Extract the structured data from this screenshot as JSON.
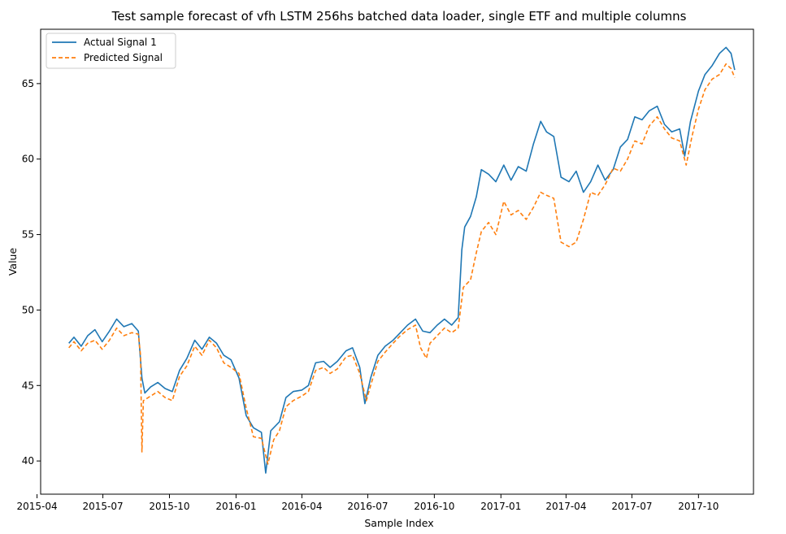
{
  "chart_data": {
    "type": "line",
    "title": "Test sample forecast of vfh LSTM 256hs batched data loader, single ETF and multiple columns",
    "xlabel": "Sample Index",
    "ylabel": "Value",
    "xlim": [
      "2015-04-06",
      "2017-12-16"
    ],
    "ylim": [
      37.8,
      68.6
    ],
    "x_ticks": [
      "2015-04",
      "2015-07",
      "2015-10",
      "2016-01",
      "2016-04",
      "2016-07",
      "2016-10",
      "2017-01",
      "2017-04",
      "2017-07",
      "2017-10"
    ],
    "y_ticks": [
      40,
      45,
      50,
      55,
      60,
      65
    ],
    "grid": false,
    "legend": "top-left",
    "series": [
      {
        "name": "Actual Signal 1",
        "color": "#1f77b4",
        "style": "solid",
        "points": [
          [
            "2015-05-15",
            47.8
          ],
          [
            "2015-05-22",
            48.2
          ],
          [
            "2015-06-01",
            47.6
          ],
          [
            "2015-06-10",
            48.3
          ],
          [
            "2015-06-20",
            48.7
          ],
          [
            "2015-06-30",
            47.9
          ],
          [
            "2015-07-10",
            48.6
          ],
          [
            "2015-07-20",
            49.4
          ],
          [
            "2015-07-30",
            48.9
          ],
          [
            "2015-08-10",
            49.1
          ],
          [
            "2015-08-19",
            48.6
          ],
          [
            "2015-08-24",
            45.5
          ],
          [
            "2015-08-28",
            44.5
          ],
          [
            "2015-09-05",
            44.9
          ],
          [
            "2015-09-15",
            45.2
          ],
          [
            "2015-09-25",
            44.8
          ],
          [
            "2015-10-05",
            44.6
          ],
          [
            "2015-10-15",
            46.0
          ],
          [
            "2015-10-25",
            46.8
          ],
          [
            "2015-11-05",
            48.0
          ],
          [
            "2015-11-15",
            47.4
          ],
          [
            "2015-11-25",
            48.2
          ],
          [
            "2015-12-05",
            47.8
          ],
          [
            "2015-12-15",
            47.0
          ],
          [
            "2015-12-25",
            46.7
          ],
          [
            "2016-01-05",
            45.5
          ],
          [
            "2016-01-15",
            43.0
          ],
          [
            "2016-01-25",
            42.2
          ],
          [
            "2016-02-05",
            41.9
          ],
          [
            "2016-02-11",
            39.2
          ],
          [
            "2016-02-18",
            42.0
          ],
          [
            "2016-03-01",
            42.6
          ],
          [
            "2016-03-10",
            44.2
          ],
          [
            "2016-03-20",
            44.6
          ],
          [
            "2016-04-01",
            44.7
          ],
          [
            "2016-04-10",
            45.0
          ],
          [
            "2016-04-20",
            46.5
          ],
          [
            "2016-05-01",
            46.6
          ],
          [
            "2016-05-10",
            46.2
          ],
          [
            "2016-05-20",
            46.6
          ],
          [
            "2016-06-01",
            47.3
          ],
          [
            "2016-06-10",
            47.5
          ],
          [
            "2016-06-20",
            46.2
          ],
          [
            "2016-06-27",
            43.8
          ],
          [
            "2016-07-05",
            45.5
          ],
          [
            "2016-07-15",
            47.0
          ],
          [
            "2016-07-25",
            47.6
          ],
          [
            "2016-08-05",
            48.0
          ],
          [
            "2016-08-15",
            48.5
          ],
          [
            "2016-08-25",
            49.0
          ],
          [
            "2016-09-05",
            49.4
          ],
          [
            "2016-09-15",
            48.6
          ],
          [
            "2016-09-25",
            48.5
          ],
          [
            "2016-10-05",
            49.0
          ],
          [
            "2016-10-15",
            49.4
          ],
          [
            "2016-10-25",
            49.0
          ],
          [
            "2016-11-03",
            49.5
          ],
          [
            "2016-11-08",
            54.0
          ],
          [
            "2016-11-12",
            55.5
          ],
          [
            "2016-11-20",
            56.2
          ],
          [
            "2016-11-28",
            57.5
          ],
          [
            "2016-12-05",
            59.3
          ],
          [
            "2016-12-15",
            59.0
          ],
          [
            "2016-12-25",
            58.5
          ],
          [
            "2017-01-05",
            59.6
          ],
          [
            "2017-01-15",
            58.6
          ],
          [
            "2017-01-25",
            59.5
          ],
          [
            "2017-02-05",
            59.2
          ],
          [
            "2017-02-15",
            61.0
          ],
          [
            "2017-02-25",
            62.5
          ],
          [
            "2017-03-05",
            61.8
          ],
          [
            "2017-03-15",
            61.5
          ],
          [
            "2017-03-25",
            58.8
          ],
          [
            "2017-04-05",
            58.5
          ],
          [
            "2017-04-15",
            59.2
          ],
          [
            "2017-04-25",
            57.8
          ],
          [
            "2017-05-05",
            58.5
          ],
          [
            "2017-05-15",
            59.6
          ],
          [
            "2017-05-25",
            58.6
          ],
          [
            "2017-06-05",
            59.3
          ],
          [
            "2017-06-15",
            60.8
          ],
          [
            "2017-06-25",
            61.3
          ],
          [
            "2017-07-05",
            62.8
          ],
          [
            "2017-07-15",
            62.6
          ],
          [
            "2017-07-25",
            63.2
          ],
          [
            "2017-08-05",
            63.5
          ],
          [
            "2017-08-15",
            62.3
          ],
          [
            "2017-08-25",
            61.8
          ],
          [
            "2017-09-05",
            62.0
          ],
          [
            "2017-09-12",
            60.2
          ],
          [
            "2017-09-20",
            62.5
          ],
          [
            "2017-10-01",
            64.5
          ],
          [
            "2017-10-10",
            65.6
          ],
          [
            "2017-10-20",
            66.2
          ],
          [
            "2017-10-30",
            67.0
          ],
          [
            "2017-11-08",
            67.4
          ],
          [
            "2017-11-15",
            67.0
          ],
          [
            "2017-11-20",
            65.9
          ]
        ]
      },
      {
        "name": "Predicted Signal",
        "color": "#ff7f0e",
        "style": "dashed",
        "points": [
          [
            "2015-05-15",
            47.5
          ],
          [
            "2015-05-22",
            47.9
          ],
          [
            "2015-06-01",
            47.3
          ],
          [
            "2015-06-10",
            47.8
          ],
          [
            "2015-06-20",
            48.0
          ],
          [
            "2015-06-30",
            47.4
          ],
          [
            "2015-07-10",
            48.0
          ],
          [
            "2015-07-20",
            48.8
          ],
          [
            "2015-07-30",
            48.3
          ],
          [
            "2015-08-10",
            48.5
          ],
          [
            "2015-08-19",
            48.4
          ],
          [
            "2015-08-22",
            47.0
          ],
          [
            "2015-08-24",
            40.6
          ],
          [
            "2015-08-26",
            44.0
          ],
          [
            "2015-09-05",
            44.3
          ],
          [
            "2015-09-15",
            44.6
          ],
          [
            "2015-09-25",
            44.2
          ],
          [
            "2015-10-05",
            44.0
          ],
          [
            "2015-10-15",
            45.6
          ],
          [
            "2015-10-25",
            46.3
          ],
          [
            "2015-11-05",
            47.6
          ],
          [
            "2015-11-15",
            47.0
          ],
          [
            "2015-11-25",
            48.0
          ],
          [
            "2015-12-05",
            47.5
          ],
          [
            "2015-12-15",
            46.5
          ],
          [
            "2015-12-25",
            46.2
          ],
          [
            "2016-01-05",
            45.8
          ],
          [
            "2016-01-15",
            43.5
          ],
          [
            "2016-01-25",
            41.6
          ],
          [
            "2016-02-05",
            41.5
          ],
          [
            "2016-02-14",
            39.8
          ],
          [
            "2016-02-22",
            41.4
          ],
          [
            "2016-03-01",
            42.0
          ],
          [
            "2016-03-10",
            43.6
          ],
          [
            "2016-03-20",
            44.0
          ],
          [
            "2016-04-01",
            44.3
          ],
          [
            "2016-04-10",
            44.6
          ],
          [
            "2016-04-20",
            46.0
          ],
          [
            "2016-05-01",
            46.2
          ],
          [
            "2016-05-10",
            45.8
          ],
          [
            "2016-05-20",
            46.1
          ],
          [
            "2016-06-01",
            46.9
          ],
          [
            "2016-06-10",
            47.0
          ],
          [
            "2016-06-20",
            45.8
          ],
          [
            "2016-06-29",
            44.0
          ],
          [
            "2016-07-05",
            45.0
          ],
          [
            "2016-07-15",
            46.6
          ],
          [
            "2016-07-25",
            47.2
          ],
          [
            "2016-08-05",
            47.8
          ],
          [
            "2016-08-15",
            48.3
          ],
          [
            "2016-08-25",
            48.7
          ],
          [
            "2016-09-05",
            49.0
          ],
          [
            "2016-09-12",
            47.5
          ],
          [
            "2016-09-20",
            46.8
          ],
          [
            "2016-09-25",
            47.8
          ],
          [
            "2016-10-05",
            48.3
          ],
          [
            "2016-10-15",
            48.8
          ],
          [
            "2016-10-25",
            48.5
          ],
          [
            "2016-11-03",
            48.8
          ],
          [
            "2016-11-10",
            51.5
          ],
          [
            "2016-11-20",
            52.0
          ],
          [
            "2016-11-28",
            53.8
          ],
          [
            "2016-12-05",
            55.2
          ],
          [
            "2016-12-15",
            55.8
          ],
          [
            "2016-12-25",
            55.0
          ],
          [
            "2017-01-05",
            57.2
          ],
          [
            "2017-01-15",
            56.3
          ],
          [
            "2017-01-25",
            56.6
          ],
          [
            "2017-02-05",
            56.0
          ],
          [
            "2017-02-15",
            56.8
          ],
          [
            "2017-02-25",
            57.8
          ],
          [
            "2017-03-05",
            57.6
          ],
          [
            "2017-03-15",
            57.4
          ],
          [
            "2017-03-25",
            54.5
          ],
          [
            "2017-04-05",
            54.2
          ],
          [
            "2017-04-15",
            54.5
          ],
          [
            "2017-04-25",
            56.0
          ],
          [
            "2017-05-05",
            57.8
          ],
          [
            "2017-05-15",
            57.6
          ],
          [
            "2017-05-25",
            58.3
          ],
          [
            "2017-06-05",
            59.4
          ],
          [
            "2017-06-15",
            59.2
          ],
          [
            "2017-06-25",
            60.0
          ],
          [
            "2017-07-05",
            61.2
          ],
          [
            "2017-07-15",
            61.0
          ],
          [
            "2017-07-25",
            62.2
          ],
          [
            "2017-08-05",
            62.8
          ],
          [
            "2017-08-15",
            62.0
          ],
          [
            "2017-08-25",
            61.4
          ],
          [
            "2017-09-05",
            61.2
          ],
          [
            "2017-09-14",
            59.6
          ],
          [
            "2017-09-22",
            61.5
          ],
          [
            "2017-10-01",
            63.3
          ],
          [
            "2017-10-10",
            64.6
          ],
          [
            "2017-10-20",
            65.3
          ],
          [
            "2017-10-30",
            65.6
          ],
          [
            "2017-11-08",
            66.3
          ],
          [
            "2017-11-15",
            66.0
          ],
          [
            "2017-11-20",
            65.4
          ]
        ]
      }
    ]
  }
}
